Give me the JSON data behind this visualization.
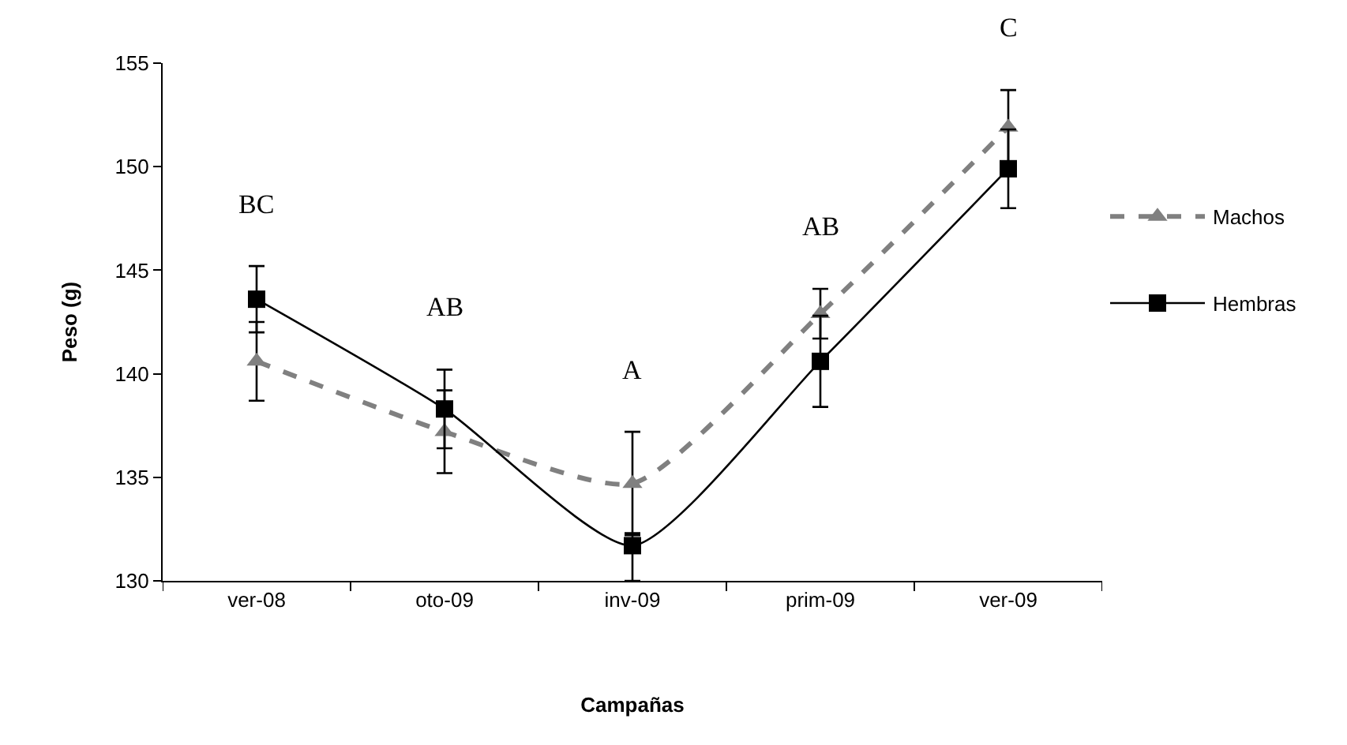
{
  "chart_data": {
    "type": "line",
    "xlabel": "Campañas",
    "ylabel": "Peso (g)",
    "categories": [
      "ver-08",
      "oto-09",
      "inv-09",
      "prim-09",
      "ver-09"
    ],
    "ylim": [
      130,
      155
    ],
    "yticks": [
      130,
      135,
      140,
      145,
      150,
      155
    ],
    "legend": "right",
    "series": [
      {
        "name": "Machos",
        "color": "#808080",
        "marker": "triangle",
        "line_style": "dashed",
        "values": [
          140.6,
          137.2,
          134.7,
          142.9,
          151.9
        ],
        "errors": [
          1.9,
          2.0,
          2.5,
          1.2,
          1.8
        ]
      },
      {
        "name": "Hembras",
        "color": "#000000",
        "marker": "square",
        "line_style": "solid",
        "values": [
          143.6,
          138.3,
          131.7,
          140.6,
          149.9
        ],
        "errors": [
          1.6,
          1.9,
          [
            130,
            132.3
          ],
          2.2,
          1.9
        ]
      }
    ],
    "annotations": [
      "BC",
      "AB",
      "A",
      "AB",
      "C"
    ]
  }
}
